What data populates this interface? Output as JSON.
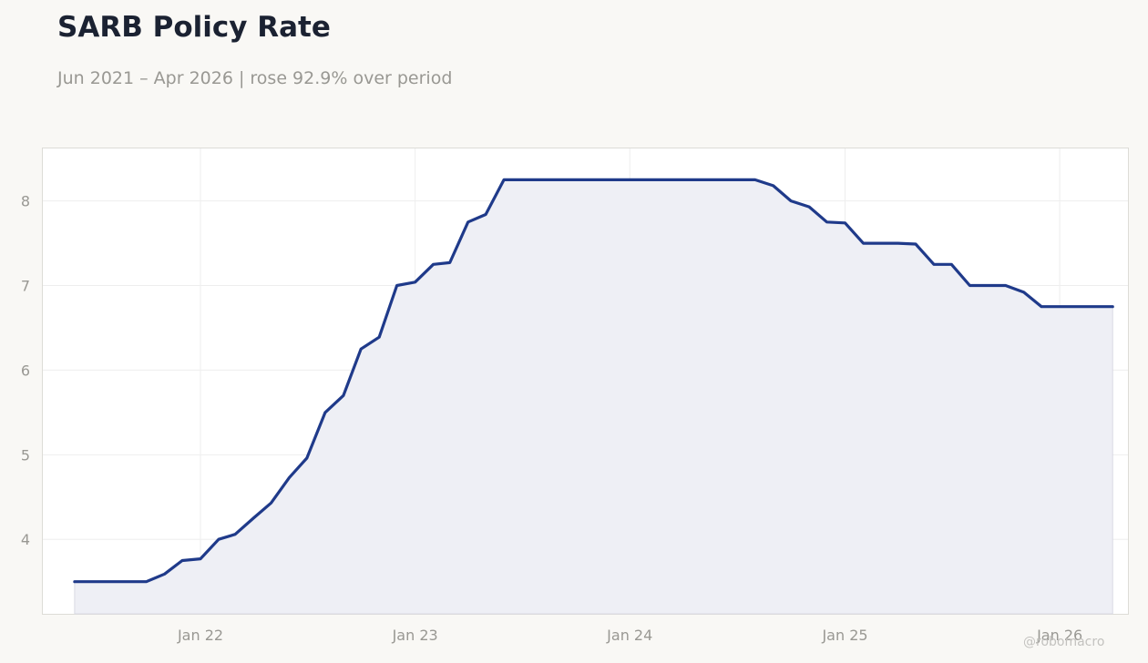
{
  "header": {
    "title": "SARB Policy Rate",
    "subtitle": "Jun 2021 – Apr 2026 | rose 92.9% over period"
  },
  "credit": "@robomacro",
  "colors": {
    "background": "#f9f8f5",
    "plot_background": "#ffffff",
    "line": "#1f3a8a",
    "area_fill": "#eeeff5",
    "text_muted": "#999893",
    "title": "#1b2232"
  },
  "chart_data": {
    "type": "area",
    "title": "SARB Policy Rate",
    "subtitle": "Jun 2021 – Apr 2026 | rose 92.9% over period",
    "xlabel": "",
    "ylabel": "",
    "x_range": [
      "2021-04-08",
      "2026-04-27"
    ],
    "ylim": [
      3.12,
      8.62
    ],
    "grid": true,
    "legend": "none",
    "x_ticks": [
      {
        "date": "2022-01-01",
        "label": "Jan 22"
      },
      {
        "date": "2023-01-01",
        "label": "Jan 23"
      },
      {
        "date": "2024-01-01",
        "label": "Jan 24"
      },
      {
        "date": "2025-01-01",
        "label": "Jan 25"
      },
      {
        "date": "2026-01-01",
        "label": "Jan 26"
      }
    ],
    "y_ticks": [
      4,
      5,
      6,
      7,
      8
    ],
    "series": [
      {
        "points": [
          [
            "2021-06-01",
            3.5
          ],
          [
            "2021-07-01",
            3.5
          ],
          [
            "2021-08-01",
            3.5
          ],
          [
            "2021-09-01",
            3.5
          ],
          [
            "2021-10-01",
            3.5
          ],
          [
            "2021-11-01",
            3.59
          ],
          [
            "2021-12-01",
            3.75
          ],
          [
            "2022-01-01",
            3.77
          ],
          [
            "2022-02-01",
            4.0
          ],
          [
            "2022-03-01",
            4.06
          ],
          [
            "2022-04-01",
            4.25
          ],
          [
            "2022-05-01",
            4.43
          ],
          [
            "2022-06-01",
            4.73
          ],
          [
            "2022-07-01",
            4.96
          ],
          [
            "2022-08-01",
            5.5
          ],
          [
            "2022-09-01",
            5.7
          ],
          [
            "2022-10-01",
            6.25
          ],
          [
            "2022-11-01",
            6.39
          ],
          [
            "2022-12-01",
            7.0
          ],
          [
            "2023-01-01",
            7.04
          ],
          [
            "2023-02-01",
            7.25
          ],
          [
            "2023-03-01",
            7.27
          ],
          [
            "2023-04-01",
            7.75
          ],
          [
            "2023-05-01",
            7.84
          ],
          [
            "2023-06-01",
            8.25
          ],
          [
            "2023-07-01",
            8.25
          ],
          [
            "2023-08-01",
            8.25
          ],
          [
            "2023-09-01",
            8.25
          ],
          [
            "2023-10-01",
            8.25
          ],
          [
            "2023-11-01",
            8.25
          ],
          [
            "2023-12-01",
            8.25
          ],
          [
            "2024-01-01",
            8.25
          ],
          [
            "2024-02-01",
            8.25
          ],
          [
            "2024-03-01",
            8.25
          ],
          [
            "2024-04-01",
            8.25
          ],
          [
            "2024-05-01",
            8.25
          ],
          [
            "2024-06-01",
            8.25
          ],
          [
            "2024-07-01",
            8.25
          ],
          [
            "2024-08-01",
            8.25
          ],
          [
            "2024-09-01",
            8.18
          ],
          [
            "2024-10-01",
            8.0
          ],
          [
            "2024-11-01",
            7.93
          ],
          [
            "2024-12-01",
            7.75
          ],
          [
            "2025-01-01",
            7.74
          ],
          [
            "2025-02-01",
            7.5
          ],
          [
            "2025-03-01",
            7.5
          ],
          [
            "2025-04-01",
            7.5
          ],
          [
            "2025-05-01",
            7.49
          ],
          [
            "2025-06-01",
            7.25
          ],
          [
            "2025-07-01",
            7.25
          ],
          [
            "2025-08-01",
            7.0
          ],
          [
            "2025-09-01",
            7.0
          ],
          [
            "2025-10-01",
            7.0
          ],
          [
            "2025-11-01",
            6.92
          ],
          [
            "2025-12-01",
            6.75
          ],
          [
            "2026-01-01",
            6.75
          ],
          [
            "2026-02-01",
            6.75
          ],
          [
            "2026-03-01",
            6.75
          ],
          [
            "2026-04-01",
            6.75
          ]
        ]
      }
    ]
  }
}
